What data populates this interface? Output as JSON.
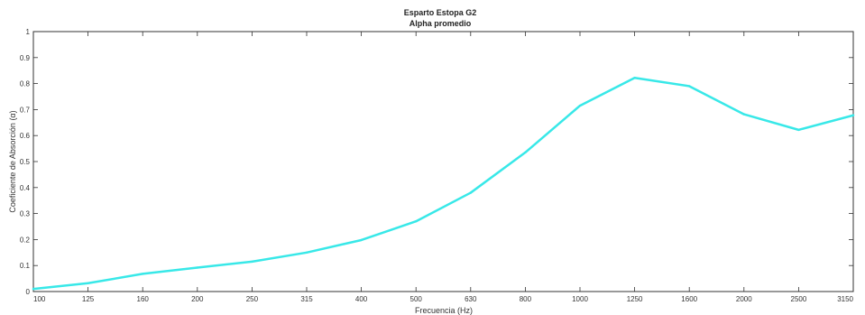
{
  "chart_data": {
    "type": "line",
    "title": "Esparto Estopa G2",
    "subtitle": "Alpha promedio",
    "xlabel": "Frecuencia (Hz)",
    "ylabel": "Coeficiente de Absorción (α)",
    "categories": [
      "100",
      "125",
      "160",
      "200",
      "250",
      "315",
      "400",
      "500",
      "630",
      "800",
      "1000",
      "1250",
      "1600",
      "2000",
      "2500",
      "3150"
    ],
    "series": [
      {
        "values": [
          0.01,
          0.032,
          0.068,
          0.092,
          0.115,
          0.15,
          0.198,
          0.27,
          0.38,
          0.535,
          0.715,
          0.822,
          0.79,
          0.682,
          0.622,
          0.678
        ],
        "color": "#38e8e8"
      }
    ],
    "ylim": [
      0,
      1
    ],
    "yticks": [
      "0",
      "0.1",
      "0.2",
      "0.3",
      "0.4",
      "0.5",
      "0.6",
      "0.7",
      "0.8",
      "0.9",
      "1"
    ],
    "grid": false,
    "axis_color": "#333333"
  }
}
